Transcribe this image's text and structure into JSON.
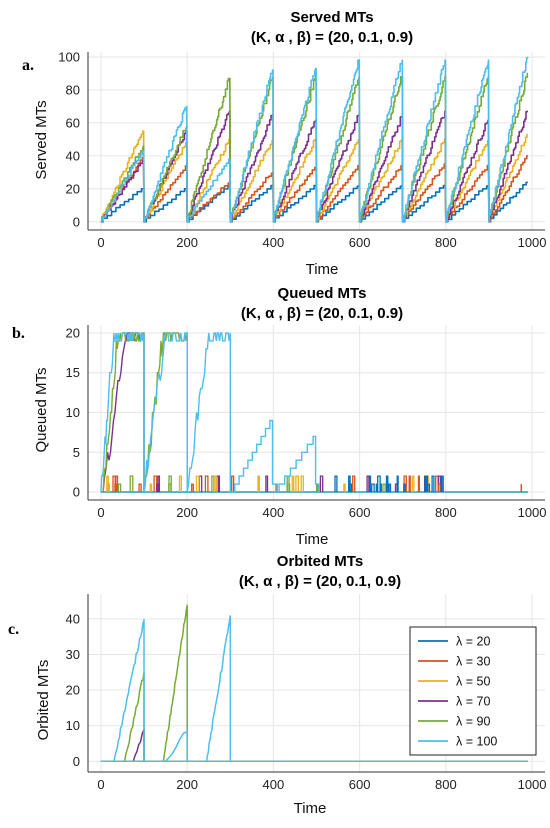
{
  "figure": {
    "legend_title_symbol": "λ"
  },
  "chart_data": [
    {
      "type": "line",
      "panel_label": "a.",
      "title": "Served MTs",
      "subtitle": "(K, α , β) =  (20, 0.1, 0.9)",
      "xlabel": "Time",
      "ylabel": "Served MTs",
      "xlim": [
        -30,
        1030
      ],
      "ylim": [
        -5,
        103
      ],
      "xticks": [
        0,
        200,
        400,
        600,
        800,
        1000
      ],
      "yticks": [
        0,
        20,
        40,
        60,
        80,
        100
      ],
      "grid": true,
      "cycle_length": 100,
      "series": [
        {
          "name": "λ = 20",
          "color": "#0072BD",
          "peaks": [
            20,
            20,
            22,
            22,
            22,
            22,
            22,
            22,
            22,
            24
          ]
        },
        {
          "name": "λ = 30",
          "color": "#D95319",
          "peaks": [
            39,
            34,
            24,
            30,
            33,
            34,
            34,
            35,
            34,
            40
          ]
        },
        {
          "name": "λ = 50",
          "color": "#EDB120",
          "peaks": [
            55,
            48,
            50,
            50,
            50,
            50,
            50,
            50,
            50,
            53
          ]
        },
        {
          "name": "λ = 70",
          "color": "#7E2F8E",
          "peaks": [
            37,
            55,
            67,
            65,
            62,
            65,
            64,
            67,
            62,
            67
          ]
        },
        {
          "name": "λ = 90",
          "color": "#77AC30",
          "peaks": [
            46,
            58,
            87,
            88,
            88,
            88,
            88,
            88,
            88,
            90
          ]
        },
        {
          "name": "λ = 100",
          "color": "#4DBEEE",
          "peaks": [
            43,
            70,
            38,
            92,
            93,
            98,
            98,
            98,
            98,
            100
          ]
        }
      ]
    },
    {
      "type": "line",
      "panel_label": "b.",
      "title": "Queued MTs",
      "subtitle": "(K, α , β) =  (20, 0.1, 0.9)",
      "xlabel": "Time",
      "ylabel": "Queued MTs",
      "xlim": [
        -30,
        1030
      ],
      "ylim": [
        -1,
        21
      ],
      "xticks": [
        0,
        200,
        400,
        600,
        800,
        1000
      ],
      "yticks": [
        0,
        5,
        10,
        15,
        20
      ],
      "grid": true,
      "series": [
        {
          "name": "λ = 20",
          "color": "#0072BD"
        },
        {
          "name": "λ = 30",
          "color": "#D95319"
        },
        {
          "name": "λ = 50",
          "color": "#EDB120"
        },
        {
          "name": "λ = 70",
          "color": "#7E2F8E"
        },
        {
          "name": "λ = 90",
          "color": "#77AC30"
        },
        {
          "name": "λ = 100",
          "color": "#4DBEEE"
        }
      ],
      "features": {
        "saturation_ramps": [
          {
            "series": "λ = 70",
            "start": 5,
            "full": 60,
            "end": 100,
            "peak": 20
          },
          {
            "series": "λ = 90",
            "start": 5,
            "full": 40,
            "end": 100,
            "peak": 20
          },
          {
            "series": "λ = 90",
            "start": 100,
            "full": 145,
            "end": 200,
            "peak": 20
          },
          {
            "series": "λ = 100",
            "start": 0,
            "full": 30,
            "end": 100,
            "peak": 20
          },
          {
            "series": "λ = 100",
            "start": 100,
            "full": 150,
            "end": 200,
            "peak": 20
          },
          {
            "series": "λ = 100",
            "start": 200,
            "full": 250,
            "end": 300,
            "peak": 20
          }
        ],
        "partial_ramps": [
          {
            "series": "λ = 100",
            "start": 300,
            "end": 400,
            "peak": 9
          },
          {
            "series": "λ = 100",
            "start": 400,
            "end": 500,
            "peak": 7
          }
        ],
        "blip_window": [
          0,
          800
        ],
        "last_blip": {
          "series": "λ = 30",
          "x": 975,
          "value": 1
        }
      }
    },
    {
      "type": "line",
      "panel_label": "c.",
      "title": "Orbited MTs",
      "subtitle": "(K, α , β) =  (20, 0.1, 0.9)",
      "xlabel": "Time",
      "ylabel": "Orbited MTs",
      "xlim": [
        -30,
        1030
      ],
      "ylim": [
        -3,
        47
      ],
      "xticks": [
        0,
        200,
        400,
        600,
        800,
        1000
      ],
      "yticks": [
        0,
        10,
        20,
        30,
        40
      ],
      "grid": true,
      "legend": "top-right",
      "series": [
        {
          "name": "λ = 20",
          "color": "#0072BD",
          "ramps": []
        },
        {
          "name": "λ = 30",
          "color": "#D95319",
          "ramps": []
        },
        {
          "name": "λ = 50",
          "color": "#EDB120",
          "ramps": []
        },
        {
          "name": "λ = 70",
          "color": "#7E2F8E",
          "ramps": [
            {
              "start": 75,
              "end": 100,
              "peak": 9
            }
          ]
        },
        {
          "name": "λ = 90",
          "color": "#77AC30",
          "ramps": [
            {
              "start": 55,
              "end": 100,
              "peak": 25
            },
            {
              "start": 145,
              "end": 200,
              "peak": 44
            }
          ]
        },
        {
          "name": "λ = 100",
          "color": "#4DBEEE",
          "ramps": [
            {
              "start": 30,
              "end": 100,
              "peak": 40
            },
            {
              "start": 150,
              "end": 200,
              "peak": 9
            },
            {
              "start": 245,
              "end": 300,
              "peak": 41
            }
          ]
        }
      ]
    }
  ]
}
